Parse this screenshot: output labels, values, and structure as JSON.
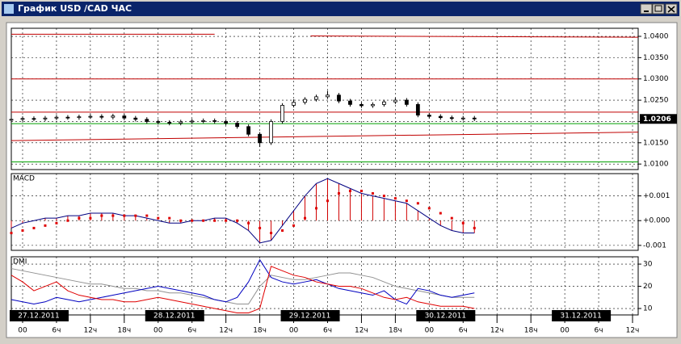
{
  "window": {
    "title": "График USD /CAD  ЧАС"
  },
  "chart_data": [
    {
      "type": "candlestick",
      "x": [
        -2,
        0,
        2,
        4,
        6,
        8,
        10,
        12,
        14,
        16,
        18,
        20,
        22,
        24,
        26,
        28,
        30,
        32,
        34,
        36,
        38,
        40,
        42,
        44,
        46,
        48,
        50,
        52,
        54,
        56,
        58,
        60,
        62,
        64,
        66,
        68,
        70,
        72,
        74,
        76,
        78,
        80
      ],
      "open": [
        1.0203,
        1.0205,
        1.0207,
        1.0206,
        1.0208,
        1.021,
        1.0209,
        1.0211,
        1.0212,
        1.021,
        1.0213,
        1.0208,
        1.0205,
        1.02,
        1.0198,
        1.0196,
        1.0199,
        1.0201,
        1.0202,
        1.02,
        1.0196,
        1.0188,
        1.017,
        1.015,
        1.02,
        1.0238,
        1.0245,
        1.0252,
        1.0258,
        1.0262,
        1.0248,
        1.024,
        1.0237,
        1.024,
        1.0246,
        1.025,
        1.024,
        1.0215,
        1.0212,
        1.0209,
        1.0207,
        1.0208
      ],
      "high": [
        1.021,
        1.0212,
        1.0212,
        1.0213,
        1.0215,
        1.0215,
        1.0216,
        1.0217,
        1.0217,
        1.0218,
        1.0218,
        1.0213,
        1.021,
        1.0205,
        1.0203,
        1.0204,
        1.0206,
        1.0207,
        1.0207,
        1.0205,
        1.0201,
        1.0193,
        1.0175,
        1.0205,
        1.0243,
        1.0252,
        1.0257,
        1.0263,
        1.0272,
        1.0267,
        1.0253,
        1.0245,
        1.0245,
        1.0251,
        1.0256,
        1.0255,
        1.0245,
        1.022,
        1.0217,
        1.0214,
        1.0213,
        1.0213
      ],
      "low": [
        1.0198,
        1.02,
        1.0201,
        1.0201,
        1.0203,
        1.0204,
        1.0204,
        1.0206,
        1.0205,
        1.0205,
        1.0203,
        1.02,
        1.0195,
        1.0193,
        1.0191,
        1.0191,
        1.0194,
        1.0196,
        1.0195,
        1.0191,
        1.0183,
        1.0165,
        1.014,
        1.0145,
        1.0195,
        1.0233,
        1.024,
        1.0247,
        1.0253,
        1.0243,
        1.0235,
        1.0232,
        1.0232,
        1.0235,
        1.0241,
        1.0235,
        1.021,
        1.0207,
        1.0204,
        1.0202,
        1.0202,
        1.0201
      ],
      "close": [
        1.0205,
        1.0207,
        1.0206,
        1.0208,
        1.021,
        1.0209,
        1.0211,
        1.0212,
        1.021,
        1.0213,
        1.0208,
        1.0205,
        1.02,
        1.0198,
        1.0196,
        1.0199,
        1.0201,
        1.0202,
        1.02,
        1.0196,
        1.0188,
        1.017,
        1.015,
        1.02,
        1.0238,
        1.0245,
        1.0252,
        1.0258,
        1.0262,
        1.0248,
        1.024,
        1.0237,
        1.024,
        1.0246,
        1.025,
        1.024,
        1.0215,
        1.0212,
        1.0209,
        1.0207,
        1.0208,
        1.0206
      ],
      "ylim": [
        1.0087,
        1.0419
      ],
      "yticks": [
        {
          "value": 1.01,
          "label": "1.0100"
        },
        {
          "value": 1.015,
          "label": "1.0150"
        },
        {
          "value": 1.02,
          "label": "1.0200"
        },
        {
          "value": 1.025,
          "label": "1.0250"
        },
        {
          "value": 1.03,
          "label": "1.0300"
        },
        {
          "value": 1.035,
          "label": "1.0350"
        },
        {
          "value": 1.04,
          "label": "1.0400"
        }
      ],
      "lines": [
        {
          "color": "#c00000",
          "x": [
            -2,
            34
          ],
          "y": [
            1.0405,
            1.0405
          ]
        },
        {
          "color": "#c00000",
          "x": [
            51,
            109
          ],
          "y": [
            1.0401,
            1.0398
          ]
        },
        {
          "color": "#c00000",
          "x": [
            -2,
            109
          ],
          "y": [
            1.03,
            1.03
          ]
        },
        {
          "color": "#c00000",
          "x": [
            -2,
            109
          ],
          "y": [
            1.0222,
            1.0222
          ]
        },
        {
          "color": "#c00000",
          "x": [
            -2,
            109
          ],
          "y": [
            1.0155,
            1.0175
          ]
        },
        {
          "color": "#00a000",
          "x": [
            -2,
            109
          ],
          "y": [
            1.0195,
            1.0195
          ]
        },
        {
          "color": "#00a000",
          "x": [
            -2,
            109
          ],
          "y": [
            1.0105,
            1.0105
          ]
        }
      ]
    },
    {
      "type": "macd",
      "label": "MACD",
      "values": [
        -0.0003,
        -0.0001,
        0.0,
        0.0001,
        0.0001,
        0.0002,
        0.0002,
        0.0003,
        0.0003,
        0.0003,
        0.0002,
        0.0002,
        0.0001,
        0.0,
        -0.0001,
        -0.0001,
        0.0,
        0.0,
        0.0001,
        0.0001,
        -0.0001,
        -0.0004,
        -0.0009,
        -0.0008,
        -0.0002,
        0.0004,
        0.001,
        0.0015,
        0.0017,
        0.0015,
        0.0013,
        0.0011,
        0.001,
        0.0009,
        0.0008,
        0.0007,
        0.0004,
        0.0001,
        -0.0002,
        -0.0004,
        -0.0005,
        -0.0005
      ],
      "signal": [
        -0.0005,
        -0.0004,
        -0.0003,
        -0.0002,
        -0.0001,
        0.0,
        0.0001,
        0.0001,
        0.0002,
        0.0002,
        0.0002,
        0.0002,
        0.0002,
        0.0001,
        0.0001,
        0.0,
        0.0,
        0.0,
        0.0,
        0.0,
        0.0,
        -0.0001,
        -0.0003,
        -0.0005,
        -0.0004,
        -0.0002,
        0.0001,
        0.0005,
        0.0008,
        0.0011,
        0.0012,
        0.0012,
        0.0011,
        0.001,
        0.0009,
        0.0008,
        0.0007,
        0.0005,
        0.0003,
        0.0001,
        -0.0001,
        -0.0003
      ],
      "bar_color": "#d00000",
      "line_color": "#000080",
      "signal_color": "#e00000",
      "ylim": [
        -0.0012,
        0.0019
      ],
      "yticks": [
        {
          "value": -0.001,
          "label": "-0.001"
        },
        {
          "value": 0.0,
          "label": "+0.000"
        },
        {
          "value": 0.001,
          "label": "+0.001"
        }
      ]
    },
    {
      "type": "line",
      "label": "DMI",
      "series": [
        {
          "color": "#909090",
          "values": [
            28,
            27,
            26,
            25,
            24,
            23,
            22,
            21,
            21,
            20,
            19,
            19,
            18,
            18,
            17,
            17,
            16,
            15,
            14,
            13,
            12,
            12,
            20,
            25,
            24,
            23,
            23,
            24,
            25,
            26,
            26,
            25,
            24,
            22,
            20,
            19,
            18,
            17,
            16,
            15,
            15,
            15
          ]
        },
        {
          "color": "#0000c0",
          "values": [
            14,
            13,
            12,
            13,
            15,
            14,
            13,
            14,
            15,
            16,
            17,
            18,
            19,
            20,
            19,
            18,
            17,
            16,
            14,
            13,
            15,
            22,
            32,
            24,
            22,
            21,
            22,
            23,
            21,
            19,
            18,
            17,
            16,
            18,
            14,
            12,
            19,
            18,
            16,
            15,
            16,
            17
          ]
        },
        {
          "color": "#e00000",
          "values": [
            25,
            22,
            18,
            20,
            22,
            18,
            16,
            15,
            14,
            14,
            13,
            13,
            14,
            15,
            14,
            13,
            12,
            11,
            10,
            9,
            8,
            8,
            10,
            29,
            27,
            25,
            24,
            22,
            21,
            20,
            20,
            19,
            17,
            15,
            14,
            15,
            13,
            12,
            11,
            11,
            11,
            10
          ]
        }
      ],
      "ylim": [
        7.1,
        33.3
      ],
      "yticks": [
        10,
        20,
        30
      ],
      "xlim": [
        -2,
        109
      ],
      "xticks": [
        {
          "value": 0,
          "label": "00"
        },
        {
          "value": 6,
          "label": "6ч"
        },
        {
          "value": 12,
          "label": "12ч"
        },
        {
          "value": 18,
          "label": "18ч"
        },
        {
          "value": 24,
          "label": "00"
        },
        {
          "value": 30,
          "label": "6ч"
        },
        {
          "value": 36,
          "label": "12ч"
        },
        {
          "value": 42,
          "label": "18ч"
        },
        {
          "value": 48,
          "label": "00"
        },
        {
          "value": 54,
          "label": "6ч"
        },
        {
          "value": 60,
          "label": "12ч"
        },
        {
          "value": 66,
          "label": "18ч"
        },
        {
          "value": 72,
          "label": "00"
        },
        {
          "value": 78,
          "label": "6ч"
        },
        {
          "value": 84,
          "label": "12ч"
        },
        {
          "value": 90,
          "label": "18ч"
        },
        {
          "value": 96,
          "label": "00"
        },
        {
          "value": 102,
          "label": "6ч"
        },
        {
          "value": 108,
          "label": "12ч"
        }
      ],
      "date_ticks": [
        {
          "value": 0,
          "label": "27.12.2011"
        },
        {
          "value": 24,
          "label": "28.12.2011"
        },
        {
          "value": 48,
          "label": "29.12.2011"
        },
        {
          "value": 72,
          "label": "30.12.2011"
        },
        {
          "value": 96,
          "label": "31.12.2011"
        }
      ]
    }
  ]
}
